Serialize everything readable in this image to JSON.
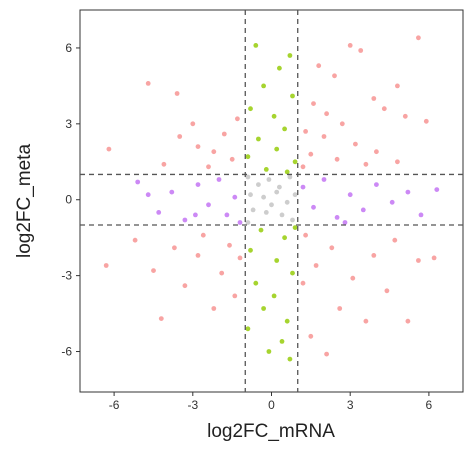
{
  "chart_data": {
    "type": "scatter",
    "title": "",
    "xlabel": "log2FC_mRNA",
    "ylabel": "log2FC_meta",
    "xlim": [
      -7.3,
      7.3
    ],
    "ylim": [
      -7.6,
      7.5
    ],
    "x_ticks": [
      -6,
      -3,
      0,
      3,
      6
    ],
    "y_ticks": [
      -6,
      -3,
      0,
      3,
      6
    ],
    "x_tick_labels": [
      "-6",
      "-3",
      "0",
      "3",
      "6"
    ],
    "y_tick_labels": [
      "-6",
      "-3",
      "0",
      "3",
      "6"
    ],
    "grid": false,
    "legend": "none",
    "reference_lines": {
      "vertical": [
        -1,
        1
      ],
      "horizontal": [
        -1,
        1
      ],
      "style": "dashed",
      "color": "#555555"
    },
    "colors": {
      "both_significant": "#f79a99",
      "mrna_only": "#c67cf4",
      "meta_only": "#9ccf18",
      "not_significant": "#c8c8c8"
    },
    "series": [
      {
        "color_key": "both_significant",
        "points": [
          [
            5.6,
            6.4
          ],
          [
            3.0,
            6.1
          ],
          [
            3.4,
            5.9
          ],
          [
            4.8,
            4.5
          ],
          [
            -4.7,
            4.6
          ],
          [
            -3.6,
            4.2
          ],
          [
            1.8,
            5.3
          ],
          [
            2.4,
            4.9
          ],
          [
            3.9,
            4.0
          ],
          [
            4.3,
            3.6
          ],
          [
            5.1,
            3.3
          ],
          [
            5.9,
            3.1
          ],
          [
            1.6,
            3.8
          ],
          [
            2.1,
            3.4
          ],
          [
            2.7,
            3.0
          ],
          [
            1.3,
            2.7
          ],
          [
            2.0,
            2.5
          ],
          [
            3.2,
            2.2
          ],
          [
            4.0,
            1.9
          ],
          [
            1.5,
            1.8
          ],
          [
            2.5,
            1.6
          ],
          [
            3.6,
            1.4
          ],
          [
            1.2,
            1.3
          ],
          [
            4.8,
            1.5
          ],
          [
            -6.2,
            2.0
          ],
          [
            -3.5,
            2.5
          ],
          [
            -2.8,
            2.1
          ],
          [
            -2.2,
            1.9
          ],
          [
            -1.8,
            2.6
          ],
          [
            -1.5,
            1.6
          ],
          [
            -1.3,
            3.2
          ],
          [
            -2.4,
            1.3
          ],
          [
            -4.1,
            1.4
          ],
          [
            -3.0,
            3.0
          ],
          [
            -6.3,
            -2.6
          ],
          [
            -5.2,
            -1.6
          ],
          [
            -4.5,
            -2.8
          ],
          [
            -3.7,
            -1.9
          ],
          [
            -3.3,
            -3.4
          ],
          [
            -4.2,
            -4.7
          ],
          [
            -2.8,
            -2.2
          ],
          [
            -2.2,
            -4.3
          ],
          [
            -1.9,
            -2.9
          ],
          [
            -1.6,
            -1.8
          ],
          [
            -1.4,
            -3.8
          ],
          [
            -2.6,
            -1.4
          ],
          [
            -1.2,
            -2.3
          ],
          [
            1.3,
            -1.4
          ],
          [
            1.7,
            -2.6
          ],
          [
            2.3,
            -1.9
          ],
          [
            3.1,
            -3.1
          ],
          [
            3.9,
            -2.2
          ],
          [
            4.7,
            -1.6
          ],
          [
            5.6,
            -2.4
          ],
          [
            6.2,
            -2.3
          ],
          [
            2.6,
            -4.3
          ],
          [
            3.6,
            -4.8
          ],
          [
            5.2,
            -4.8
          ],
          [
            1.5,
            -5.4
          ],
          [
            2.1,
            -6.1
          ],
          [
            4.4,
            -3.6
          ],
          [
            1.2,
            -3.3
          ]
        ]
      },
      {
        "color_key": "mrna_only",
        "points": [
          [
            -5.1,
            0.7
          ],
          [
            -4.3,
            -0.5
          ],
          [
            -3.8,
            0.3
          ],
          [
            -3.3,
            -0.8
          ],
          [
            -2.8,
            0.6
          ],
          [
            -2.4,
            -0.2
          ],
          [
            -2.0,
            0.8
          ],
          [
            -1.7,
            -0.6
          ],
          [
            -1.4,
            0.1
          ],
          [
            -1.2,
            -0.9
          ],
          [
            -2.9,
            -0.6
          ],
          [
            -4.7,
            0.2
          ],
          [
            1.2,
            0.5
          ],
          [
            1.6,
            -0.3
          ],
          [
            2.0,
            0.8
          ],
          [
            2.5,
            -0.7
          ],
          [
            3.0,
            0.2
          ],
          [
            3.5,
            -0.4
          ],
          [
            4.0,
            0.6
          ],
          [
            4.6,
            -0.1
          ],
          [
            5.2,
            0.3
          ],
          [
            5.7,
            -0.6
          ],
          [
            6.3,
            0.4
          ],
          [
            2.8,
            -0.9
          ]
        ]
      },
      {
        "color_key": "meta_only",
        "points": [
          [
            -0.6,
            6.1
          ],
          [
            0.7,
            5.7
          ],
          [
            0.3,
            5.2
          ],
          [
            -0.3,
            4.5
          ],
          [
            0.8,
            4.1
          ],
          [
            -0.8,
            3.6
          ],
          [
            0.1,
            3.3
          ],
          [
            0.5,
            2.8
          ],
          [
            -0.5,
            2.4
          ],
          [
            0.2,
            2.0
          ],
          [
            -0.9,
            1.7
          ],
          [
            0.9,
            1.5
          ],
          [
            -0.2,
            1.2
          ],
          [
            0.6,
            1.1
          ],
          [
            -0.4,
            -1.2
          ],
          [
            0.5,
            -1.5
          ],
          [
            -0.8,
            -2.0
          ],
          [
            0.2,
            -2.4
          ],
          [
            0.8,
            -2.9
          ],
          [
            -0.6,
            -3.3
          ],
          [
            0.1,
            -3.8
          ],
          [
            -0.3,
            -4.3
          ],
          [
            0.6,
            -4.8
          ],
          [
            -0.9,
            -5.1
          ],
          [
            0.4,
            -5.6
          ],
          [
            0.7,
            -6.3
          ],
          [
            -0.1,
            -6.0
          ],
          [
            0.9,
            -1.1
          ]
        ]
      },
      {
        "color_key": "not_significant",
        "points": [
          [
            -0.9,
            0.9
          ],
          [
            -0.5,
            0.6
          ],
          [
            -0.1,
            0.8
          ],
          [
            0.3,
            0.5
          ],
          [
            0.7,
            0.9
          ],
          [
            -0.8,
            0.2
          ],
          [
            -0.3,
            0.1
          ],
          [
            0.2,
            0.3
          ],
          [
            0.6,
            -0.1
          ],
          [
            0.9,
            0.2
          ],
          [
            -0.7,
            -0.4
          ],
          [
            -0.2,
            -0.5
          ],
          [
            0.4,
            -0.6
          ],
          [
            0.8,
            -0.8
          ],
          [
            -0.9,
            -0.9
          ],
          [
            0.0,
            -0.2
          ]
        ]
      }
    ]
  }
}
